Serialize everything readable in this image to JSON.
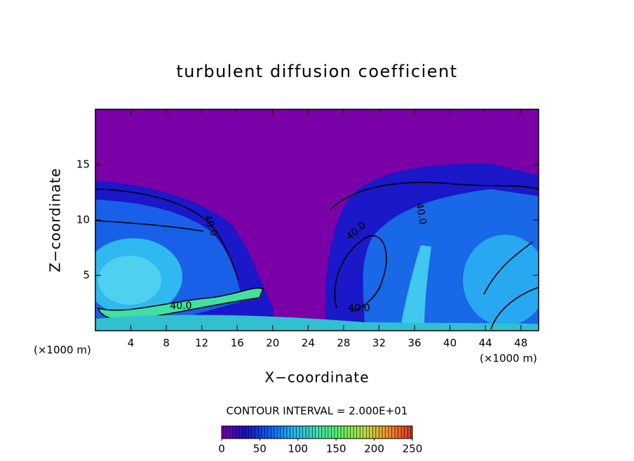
{
  "chart_data": {
    "type": "contour",
    "title": "turbulent diffusion coefficient",
    "x_label": "X−coordinate",
    "y_label": "Z−coordinate",
    "x_unit_left": "(×1000 m)",
    "x_unit_right": "(×1000 m)",
    "xlim": [
      0,
      50
    ],
    "xticks": [
      4,
      8,
      12,
      16,
      20,
      24,
      28,
      32,
      36,
      40,
      44,
      48
    ],
    "ylim": [
      0,
      20
    ],
    "yticks": [
      5,
      10,
      15
    ],
    "contour_interval": "CONTOUR INTERVAL = 2.000E+01",
    "contour_labels": [
      {
        "value": 40,
        "label": "40.0"
      },
      {
        "value": 40,
        "label": "40.0"
      },
      {
        "value": 40,
        "label": "40.0"
      },
      {
        "value": 40,
        "label": "40.0"
      },
      {
        "value": 40,
        "label": "40.0"
      }
    ],
    "colorbar": {
      "lim": [
        0,
        250
      ],
      "ticks": [
        0,
        50,
        100,
        150,
        200,
        250
      ],
      "colors": [
        "#7a00a8",
        "#1a10c8",
        "#1060f0",
        "#20b8f0",
        "#40e0b0",
        "#60f060",
        "#c0e040",
        "#f09030",
        "#e03020"
      ]
    }
  }
}
